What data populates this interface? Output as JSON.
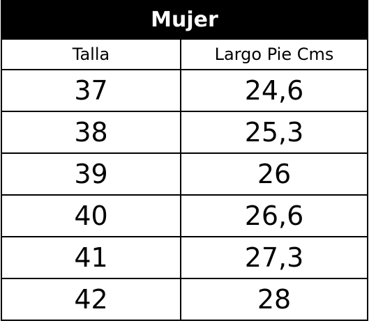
{
  "table": {
    "title": "Mujer",
    "header": [
      "Talla",
      "Largo Pie Cms"
    ],
    "rows": [
      [
        "37",
        "24,6"
      ],
      [
        "38",
        "25,3"
      ],
      [
        "39",
        "26"
      ],
      [
        "40",
        "26,6"
      ],
      [
        "41",
        "27,3"
      ],
      [
        "42",
        "28"
      ]
    ]
  }
}
